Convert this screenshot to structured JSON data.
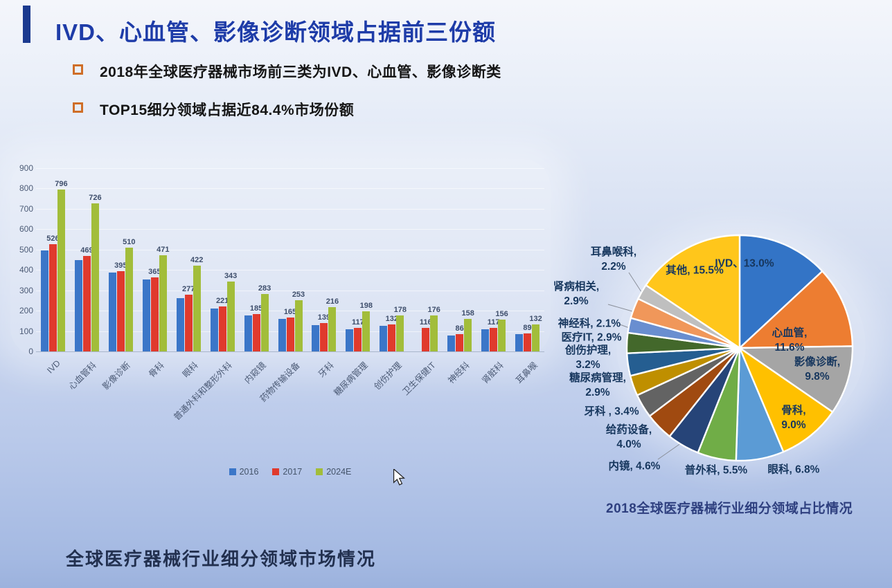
{
  "slide": {
    "title": "IVD、心血管、影像诊断领域占据前三份额",
    "bullets": [
      "2018年全球医疗器械市场前三类为IVD、心血管、影像诊断类",
      "TOP15细分领域占据近84.4%市场份额"
    ],
    "footer": "全球医疗器械行业细分领域市场情况"
  },
  "colors": {
    "title_blue": "#1e3ca8",
    "accent_bar": "#1b3a8f",
    "bullet_marker": "#cf6e28",
    "axis_text": "#4c5b76",
    "series_2016": "#3b76c8",
    "series_2017": "#e03a2d",
    "series_2024": "#a2bd3a"
  },
  "chart_data": [
    {
      "type": "bar",
      "title": "",
      "categories": [
        "IVD",
        "心血管科",
        "影像诊断",
        "骨科",
        "眼科",
        "普通外科和整形外科",
        "内窥镜",
        "药物传输设备",
        "牙科",
        "糖尿病管理",
        "创伤护理",
        "卫生保健IT",
        "神经科",
        "肾脏科",
        "耳鼻喉"
      ],
      "series": [
        {
          "name": "2016",
          "color": "#3b76c8",
          "show_labels": false,
          "values": [
            495,
            447,
            388,
            352,
            262,
            210,
            178,
            160,
            130,
            110,
            124,
            null,
            78,
            110,
            85
          ]
        },
        {
          "name": "2017",
          "color": "#e03a2d",
          "show_labels": true,
          "values": [
            526,
            469,
            395,
            365,
            277,
            221,
            185,
            165,
            139,
            117,
            132,
            116,
            86,
            117,
            89
          ]
        },
        {
          "name": "2024E",
          "color": "#a2bd3a",
          "show_labels": true,
          "values": [
            796,
            726,
            510,
            471,
            422,
            343,
            283,
            253,
            216,
            198,
            178,
            176,
            158,
            156,
            132
          ]
        }
      ],
      "ylim": [
        0,
        900
      ],
      "ytick_step": 100,
      "grid": true,
      "legend_position": "bottom"
    },
    {
      "type": "pie",
      "title": "2018全球医疗器械行业细分领域占比情况",
      "slices": [
        {
          "label": "IVD",
          "pct": 13.0,
          "display": "IVD、13.0%",
          "color": "#3374C6"
        },
        {
          "label": "心血管",
          "pct": 11.6,
          "display": "心血管, 11.6%",
          "color": "#ED7D31"
        },
        {
          "label": "影像诊断",
          "pct": 9.8,
          "display": "影像诊断, 9.8%",
          "color": "#A5A5A5"
        },
        {
          "label": "骨科",
          "pct": 9.0,
          "display": "骨科, 9.0%",
          "color": "#FFC000"
        },
        {
          "label": "眼科",
          "pct": 6.8,
          "display": "眼科, 6.8%",
          "color": "#5B9BD5"
        },
        {
          "label": "普外科",
          "pct": 5.5,
          "display": "普外科, 5.5%",
          "color": "#70AD47"
        },
        {
          "label": "内镜",
          "pct": 4.6,
          "display": "内镜, 4.6%",
          "color": "#264478"
        },
        {
          "label": "给药设备",
          "pct": 4.0,
          "display": "给药设备, 4.0%",
          "color": "#A04A10"
        },
        {
          "label": "牙科",
          "pct": 3.4,
          "display": "牙科 , 3.4%",
          "color": "#636363"
        },
        {
          "label": "糖尿病管理",
          "pct": 2.9,
          "display": "糖尿病管理, 2.9%",
          "color": "#BF8F00"
        },
        {
          "label": "创伤护理",
          "pct": 3.2,
          "display": "创伤护理, 3.2%",
          "color": "#255E91"
        },
        {
          "label": "医疗IT",
          "pct": 2.9,
          "display": "医疗IT, 2.9%",
          "color": "#43682B"
        },
        {
          "label": "神经科",
          "pct": 2.1,
          "display": "神经科, 2.1%",
          "color": "#698ED0"
        },
        {
          "label": "肾病相关",
          "pct": 2.9,
          "display": "肾病相关, 2.9%",
          "color": "#F0975A"
        },
        {
          "label": "耳鼻喉科",
          "pct": 2.2,
          "display": "耳鼻喉科, 2.2%",
          "color": "#BFBFBF"
        },
        {
          "label": "其他",
          "pct": 15.5,
          "display": "其他, 15.5%",
          "color": "#FFC61B"
        }
      ]
    }
  ]
}
